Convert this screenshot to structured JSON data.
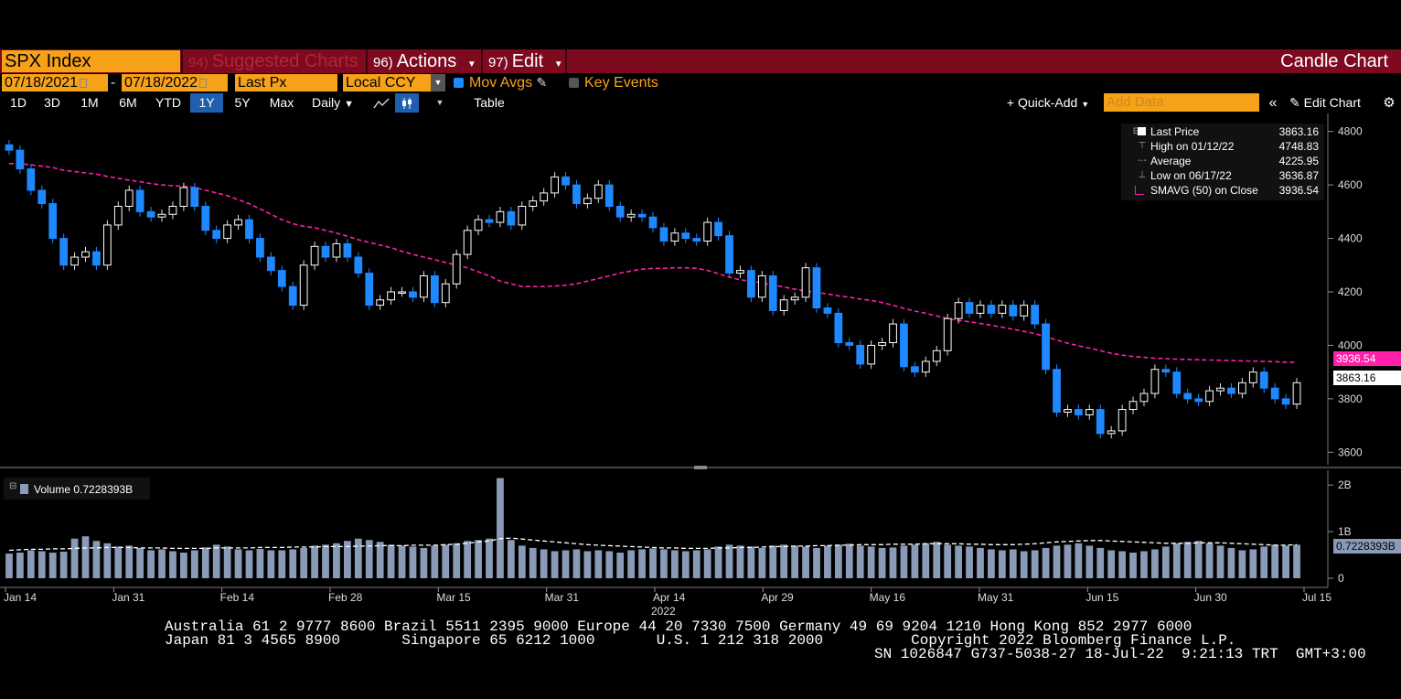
{
  "toolbar": {
    "ticker": "SPX Index",
    "suggested": {
      "num": "94)",
      "label": "Suggested Charts"
    },
    "actions": {
      "num": "96)",
      "label": "Actions"
    },
    "edit": {
      "num": "97)",
      "label": "Edit"
    },
    "chart_type": "Candle Chart"
  },
  "settings": {
    "start_date": "07/18/2021",
    "date_sep": "-",
    "end_date": "07/18/2022",
    "price_field": "Last Px",
    "currency": "Local CCY",
    "mov_avgs_label": "Mov Avgs",
    "key_events_label": "Key Events"
  },
  "periods": [
    "1D",
    "3D",
    "1M",
    "6M",
    "YTD",
    "1Y",
    "5Y",
    "Max"
  ],
  "active_period": "1Y",
  "frequency": "Daily",
  "table_label": "Table",
  "quick_add_label": "+ Quick-Add",
  "add_data_placeholder": "Add Data",
  "edit_chart_label": "Edit Chart",
  "legend": {
    "last_price": {
      "label": "Last Price",
      "value": "3863.16"
    },
    "high": {
      "label": "High on 01/12/22",
      "value": "4748.83"
    },
    "average": {
      "label": "Average",
      "value": "4225.95"
    },
    "low": {
      "label": "Low on 06/17/22",
      "value": "3636.87"
    },
    "smavg": {
      "label": "SMAVG (50)  on Close",
      "value": "3936.54"
    }
  },
  "volume_panel": {
    "label": "Volume",
    "value": "0.7228393B",
    "tag": "0.7228393B"
  },
  "price_tags": {
    "smavg": "3936.54",
    "last": "3863.16"
  },
  "footer": {
    "line1": "Australia 61 2 9777 8600 Brazil 5511 2395 9000 Europe 44 20 7330 7500 Germany 49 69 9204 1210 Hong Kong 852 2977 6000",
    "line2": "Japan 81 3 4565 8900       Singapore 65 6212 1000       U.S. 1 212 318 2000          Copyright 2022 Bloomberg Finance L.P.",
    "line3": "SN 1026847 G737-5038-27 18-Jul-22  9:21:13 TRT  GMT+3:00"
  },
  "colors": {
    "up_candle": "#ffffff",
    "down_candle": "#1e88ff",
    "ma_line": "#ff1fa8",
    "volume_bar": "#8a9bb8",
    "toolbar": "#7d0a1f",
    "accent": "#f5a219"
  },
  "chart_data": {
    "type": "candlestick",
    "x_ticks": [
      "Jan 14",
      "Jan 31",
      "Feb 14",
      "Feb 28",
      "Mar 15",
      "Mar 31",
      "Apr 14",
      "Apr 29",
      "May 16",
      "May 31",
      "Jun 15",
      "Jun 30",
      "Jul 15"
    ],
    "x_year_label": "2022",
    "y_ticks": [
      3600,
      3800,
      4000,
      4200,
      4400,
      4600,
      4800
    ],
    "ylim": [
      3560,
      4840
    ],
    "volume_ticks": [
      {
        "v": 0,
        "label": "0"
      },
      {
        "v": 1,
        "label": "1B"
      },
      {
        "v": 2,
        "label": "2B"
      }
    ],
    "volume_ylim": [
      0,
      2.2
    ],
    "close": [
      4730,
      4660,
      4580,
      4530,
      4400,
      4300,
      4330,
      4350,
      4300,
      4450,
      4520,
      4580,
      4500,
      4480,
      4490,
      4520,
      4590,
      4520,
      4430,
      4400,
      4450,
      4470,
      4400,
      4330,
      4280,
      4220,
      4150,
      4300,
      4370,
      4330,
      4380,
      4330,
      4270,
      4150,
      4170,
      4200,
      4200,
      4180,
      4260,
      4160,
      4230,
      4340,
      4430,
      4470,
      4460,
      4500,
      4450,
      4520,
      4540,
      4570,
      4630,
      4600,
      4530,
      4550,
      4600,
      4520,
      4480,
      4490,
      4480,
      4440,
      4390,
      4420,
      4400,
      4390,
      4460,
      4410,
      4270,
      4280,
      4180,
      4260,
      4130,
      4170,
      4180,
      4290,
      4140,
      4120,
      4010,
      4000,
      3930,
      4000,
      4010,
      4080,
      3920,
      3900,
      3940,
      3980,
      4100,
      4160,
      4120,
      4150,
      4120,
      4150,
      4110,
      4150,
      4080,
      3910,
      3750,
      3760,
      3740,
      3760,
      3670,
      3680,
      3760,
      3790,
      3820,
      3910,
      3900,
      3820,
      3800,
      3790,
      3830,
      3840,
      3820,
      3860,
      3900,
      3840,
      3800,
      3780,
      3860
    ],
    "sma50": [
      4680,
      4680,
      4675,
      4670,
      4665,
      4655,
      4650,
      4645,
      4640,
      4632,
      4625,
      4618,
      4612,
      4605,
      4600,
      4597,
      4595,
      4590,
      4580,
      4570,
      4560,
      4545,
      4530,
      4510,
      4490,
      4470,
      4455,
      4445,
      4440,
      4430,
      4420,
      4408,
      4395,
      4385,
      4375,
      4365,
      4352,
      4340,
      4330,
      4320,
      4310,
      4300,
      4290,
      4275,
      4260,
      4240,
      4230,
      4220,
      4220,
      4220,
      4222,
      4225,
      4230,
      4240,
      4250,
      4260,
      4270,
      4278,
      4285,
      4288,
      4288,
      4290,
      4290,
      4288,
      4280,
      4268,
      4255,
      4245,
      4240,
      4233,
      4225,
      4218,
      4210,
      4203,
      4198,
      4192,
      4185,
      4180,
      4173,
      4168,
      4160,
      4150,
      4138,
      4128,
      4120,
      4110,
      4100,
      4093,
      4088,
      4082,
      4075,
      4068,
      4060,
      4052,
      4044,
      4032,
      4020,
      4008,
      3998,
      3990,
      3980,
      3970,
      3963,
      3958,
      3955,
      3952,
      3950,
      3948,
      3947,
      3946,
      3945,
      3944,
      3943,
      3942,
      3941,
      3940,
      3939,
      3937,
      3936.54
    ],
    "volume": [
      0.53,
      0.55,
      0.6,
      0.58,
      0.55,
      0.57,
      0.85,
      0.9,
      0.8,
      0.75,
      0.68,
      0.7,
      0.65,
      0.6,
      0.62,
      0.58,
      0.55,
      0.6,
      0.66,
      0.72,
      0.68,
      0.62,
      0.6,
      0.63,
      0.6,
      0.6,
      0.62,
      0.65,
      0.7,
      0.72,
      0.75,
      0.8,
      0.85,
      0.82,
      0.78,
      0.72,
      0.7,
      0.68,
      0.65,
      0.7,
      0.72,
      0.75,
      0.8,
      0.82,
      0.85,
      2.15,
      0.82,
      0.7,
      0.65,
      0.62,
      0.58,
      0.6,
      0.62,
      0.58,
      0.6,
      0.58,
      0.55,
      0.6,
      0.62,
      0.64,
      0.62,
      0.6,
      0.58,
      0.6,
      0.62,
      0.68,
      0.72,
      0.7,
      0.68,
      0.65,
      0.7,
      0.72,
      0.7,
      0.68,
      0.65,
      0.7,
      0.72,
      0.74,
      0.7,
      0.68,
      0.65,
      0.66,
      0.7,
      0.72,
      0.75,
      0.78,
      0.72,
      0.7,
      0.68,
      0.65,
      0.62,
      0.6,
      0.62,
      0.58,
      0.6,
      0.65,
      0.7,
      0.72,
      0.75,
      0.7,
      0.65,
      0.6,
      0.58,
      0.55,
      0.58,
      0.62,
      0.68,
      0.75,
      0.78,
      0.8,
      0.75,
      0.7,
      0.65,
      0.6,
      0.62,
      0.68,
      0.72,
      0.7,
      0.72
    ],
    "volume_avg": [
      0.6,
      0.61,
      0.62,
      0.62,
      0.63,
      0.63,
      0.64,
      0.65,
      0.65,
      0.66,
      0.66,
      0.66,
      0.65,
      0.65,
      0.65,
      0.64,
      0.64,
      0.64,
      0.64,
      0.65,
      0.65,
      0.65,
      0.65,
      0.66,
      0.66,
      0.66,
      0.67,
      0.67,
      0.67,
      0.68,
      0.68,
      0.68,
      0.69,
      0.69,
      0.7,
      0.7,
      0.7,
      0.71,
      0.71,
      0.71,
      0.72,
      0.73,
      0.75,
      0.78,
      0.8,
      0.85,
      0.86,
      0.84,
      0.82,
      0.8,
      0.78,
      0.76,
      0.74,
      0.72,
      0.71,
      0.7,
      0.69,
      0.68,
      0.67,
      0.66,
      0.65,
      0.65,
      0.64,
      0.64,
      0.64,
      0.65,
      0.65,
      0.66,
      0.66,
      0.67,
      0.68,
      0.68,
      0.69,
      0.69,
      0.7,
      0.7,
      0.71,
      0.71,
      0.72,
      0.72,
      0.72,
      0.73,
      0.73,
      0.73,
      0.74,
      0.74,
      0.74,
      0.74,
      0.73,
      0.73,
      0.72,
      0.72,
      0.72,
      0.73,
      0.74,
      0.76,
      0.78,
      0.79,
      0.8,
      0.81,
      0.81,
      0.8,
      0.79,
      0.78,
      0.77,
      0.76,
      0.75,
      0.75,
      0.75,
      0.76,
      0.76,
      0.76,
      0.75,
      0.74,
      0.73,
      0.72,
      0.71,
      0.71,
      0.72
    ]
  }
}
